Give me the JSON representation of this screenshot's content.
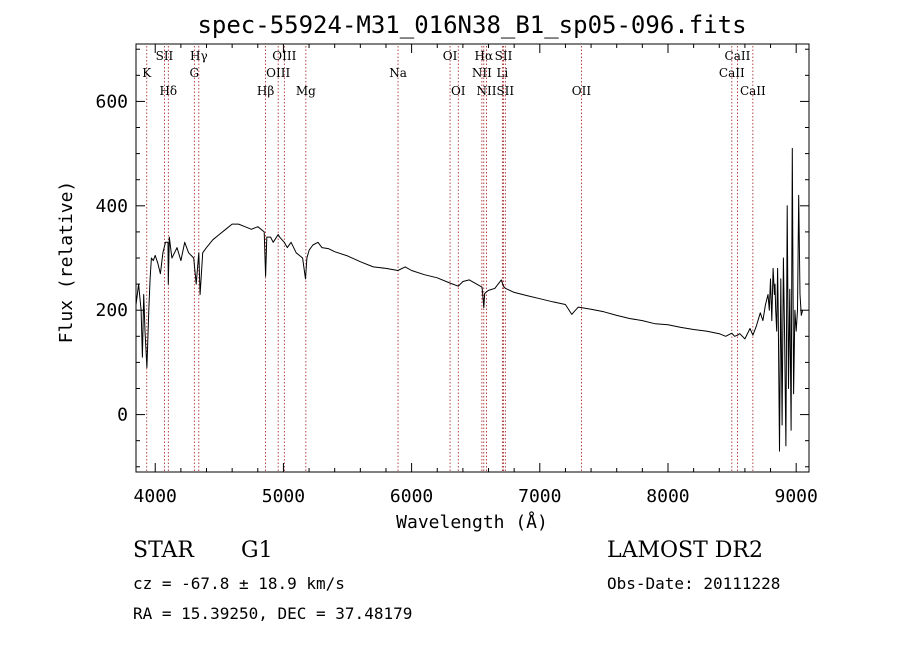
{
  "chart_data": {
    "type": "line",
    "title": "spec-55924-M31_016N38_B1_sp05-096.fits",
    "xlabel": "Wavelength (Å)",
    "ylabel": "Flux (relative)",
    "xlim": [
      3850,
      9100
    ],
    "ylim": [
      -110,
      710
    ],
    "x_ticks": [
      4000,
      5000,
      6000,
      7000,
      8000,
      9000
    ],
    "y_ticks": [
      0,
      200,
      400,
      600
    ],
    "grid": false,
    "line_color": "#000000",
    "marker_color": "#a01818",
    "series": [
      {
        "x": [
          3850,
          3870,
          3890,
          3900,
          3910,
          3920,
          3935,
          3950,
          3960,
          3970,
          3985,
          4000,
          4020,
          4040,
          4060,
          4080,
          4100,
          4102,
          4110,
          4130,
          4150,
          4170,
          4200,
          4230,
          4260,
          4300,
          4320,
          4340,
          4350,
          4370,
          4400,
          4450,
          4500,
          4550,
          4600,
          4650,
          4700,
          4750,
          4800,
          4850,
          4861,
          4870,
          4900,
          4920,
          4959,
          4970,
          5007,
          5030,
          5060,
          5100,
          5150,
          5172,
          5183,
          5200,
          5230,
          5270,
          5300,
          5350,
          5400,
          5500,
          5600,
          5700,
          5800,
          5893,
          5950,
          6000,
          6100,
          6200,
          6300,
          6364,
          6400,
          6450,
          6500,
          6550,
          6563,
          6570,
          6584,
          6600,
          6650,
          6700,
          6717,
          6731,
          6800,
          6900,
          7000,
          7100,
          7200,
          7250,
          7260,
          7300,
          7400,
          7500,
          7600,
          7700,
          7800,
          7900,
          8000,
          8100,
          8200,
          8300,
          8400,
          8450,
          8498,
          8520,
          8542,
          8560,
          8600,
          8640,
          8662,
          8690,
          8720,
          8740,
          8760,
          8780,
          8790,
          8800,
          8810,
          8820,
          8830,
          8835,
          8840,
          8848,
          8855,
          8860,
          8870,
          8880,
          8890,
          8900,
          8910,
          8920,
          8930,
          8940,
          8950,
          8960,
          8970,
          8980,
          8990,
          9000,
          9010,
          9020,
          9030,
          9040,
          9050
        ],
        "values": [
          210,
          250,
          200,
          110,
          230,
          160,
          90,
          200,
          260,
          300,
          295,
          305,
          290,
          270,
          310,
          330,
          330,
          250,
          340,
          300,
          310,
          320,
          295,
          330,
          310,
          300,
          250,
          310,
          230,
          310,
          320,
          335,
          345,
          355,
          365,
          365,
          360,
          355,
          360,
          350,
          265,
          340,
          340,
          330,
          345,
          340,
          330,
          320,
          330,
          310,
          300,
          260,
          300,
          315,
          325,
          330,
          320,
          318,
          312,
          304,
          293,
          283,
          280,
          276,
          283,
          276,
          268,
          262,
          252,
          246,
          255,
          258,
          251,
          244,
          205,
          232,
          235,
          238,
          242,
          258,
          246,
          242,
          234,
          228,
          222,
          216,
          211,
          192,
          195,
          206,
          202,
          197,
          190,
          184,
          180,
          174,
          172,
          167,
          163,
          160,
          155,
          150,
          156,
          150,
          152,
          155,
          145,
          165,
          152,
          170,
          195,
          180,
          210,
          230,
          200,
          260,
          180,
          280,
          230,
          250,
          200,
          160,
          280,
          200,
          -70,
          260,
          -20,
          300,
          150,
          -60,
          400,
          50,
          240,
          -30,
          510,
          40,
          200,
          160,
          200,
          420,
          230,
          190,
          200
        ],
        "name": ""
      }
    ],
    "emission_lines": [
      {
        "label": "K",
        "x": 3934,
        "row": 2
      },
      {
        "label": "SII",
        "x": 4072,
        "row": 1
      },
      {
        "label": "Hδ",
        "x": 4102,
        "row": 3
      },
      {
        "label": "Hγ",
        "x": 4340,
        "row": 1
      },
      {
        "label": "G",
        "x": 4305,
        "row": 2
      },
      {
        "label": "Hβ",
        "x": 4861,
        "row": 3
      },
      {
        "label": "OIII",
        "x": 4959,
        "row": 2
      },
      {
        "label": "OIII",
        "x": 5007,
        "row": 1
      },
      {
        "label": "Mg",
        "x": 5175,
        "row": 3
      },
      {
        "label": "Na",
        "x": 5894,
        "row": 2
      },
      {
        "label": "OI",
        "x": 6300,
        "row": 1
      },
      {
        "label": "OI",
        "x": 6364,
        "row": 3
      },
      {
        "label": "Hα",
        "x": 6563,
        "row": 1
      },
      {
        "label": "NII",
        "x": 6548,
        "row": 2
      },
      {
        "label": "NII",
        "x": 6584,
        "row": 3
      },
      {
        "label": "SII",
        "x": 6717,
        "row": 1
      },
      {
        "label": "Li",
        "x": 6708,
        "row": 2
      },
      {
        "label": "SII",
        "x": 6731,
        "row": 3
      },
      {
        "label": "OII",
        "x": 7325,
        "row": 3
      },
      {
        "label": "CaII",
        "x": 8498,
        "row": 2
      },
      {
        "label": "CaII",
        "x": 8542,
        "row": 1
      },
      {
        "label": "CaII",
        "x": 8662,
        "row": 3
      }
    ]
  },
  "footer": {
    "object_class": "STAR",
    "subclass": "G1",
    "survey": "LAMOST DR2",
    "redshift": "cz = -67.8 ± 18.9 km/s",
    "obs_date": "Obs-Date: 20111228",
    "coords": "RA =  15.39250, DEC =  37.48179"
  }
}
